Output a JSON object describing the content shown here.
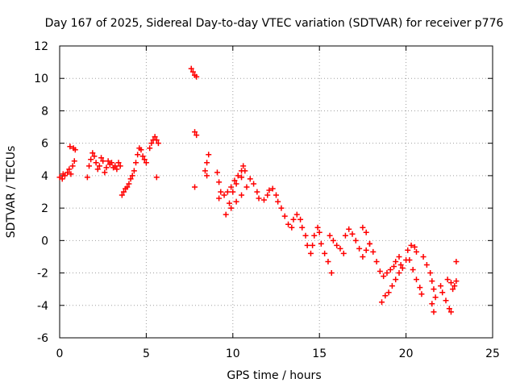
{
  "chart_data": {
    "type": "scatter",
    "title": "Day 167 of 2025, Sidereal Day-to-day VTEC variation (SDTVAR) for receiver p776",
    "xlabel": "GPS time / hours",
    "ylabel": "SDTVAR / TECUs",
    "xlim": [
      0,
      25
    ],
    "ylim": [
      -6,
      12
    ],
    "xticks": [
      "0",
      "5",
      "10",
      "15",
      "20",
      "25"
    ],
    "yticks": [
      "-6",
      "-4",
      "-2",
      "0",
      "2",
      "4",
      "6",
      "8",
      "10",
      "12"
    ],
    "grid": true,
    "marker": "+",
    "color": "#ff0000",
    "series": [
      {
        "name": "SDTVAR",
        "points": [
          [
            0.0,
            3.9
          ],
          [
            0.15,
            3.8
          ],
          [
            0.3,
            4.0
          ],
          [
            0.45,
            4.2
          ],
          [
            0.55,
            4.4
          ],
          [
            0.65,
            4.1
          ],
          [
            0.75,
            4.6
          ],
          [
            0.85,
            4.9
          ],
          [
            0.6,
            5.8
          ],
          [
            0.8,
            5.7
          ],
          [
            0.9,
            5.6
          ],
          [
            0.2,
            4.1
          ],
          [
            1.6,
            3.9
          ],
          [
            1.7,
            4.6
          ],
          [
            1.8,
            5.0
          ],
          [
            1.9,
            5.4
          ],
          [
            2.0,
            5.2
          ],
          [
            2.1,
            4.8
          ],
          [
            2.2,
            4.4
          ],
          [
            2.3,
            4.6
          ],
          [
            2.4,
            5.1
          ],
          [
            2.5,
            4.9
          ],
          [
            2.6,
            4.2
          ],
          [
            2.7,
            4.5
          ],
          [
            2.8,
            4.9
          ],
          [
            2.9,
            4.7
          ],
          [
            3.0,
            4.8
          ],
          [
            3.1,
            4.5
          ],
          [
            3.2,
            4.6
          ],
          [
            3.3,
            4.4
          ],
          [
            3.4,
            4.8
          ],
          [
            3.5,
            4.6
          ],
          [
            3.6,
            2.8
          ],
          [
            3.7,
            3.0
          ],
          [
            3.8,
            3.2
          ],
          [
            3.9,
            3.3
          ],
          [
            4.0,
            3.5
          ],
          [
            4.1,
            3.8
          ],
          [
            4.2,
            4.0
          ],
          [
            4.3,
            4.3
          ],
          [
            4.4,
            4.8
          ],
          [
            4.5,
            5.3
          ],
          [
            4.6,
            5.7
          ],
          [
            4.7,
            5.6
          ],
          [
            4.8,
            5.2
          ],
          [
            4.9,
            5.0
          ],
          [
            5.0,
            4.8
          ],
          [
            5.2,
            5.7
          ],
          [
            5.3,
            6.0
          ],
          [
            5.4,
            6.2
          ],
          [
            5.5,
            6.4
          ],
          [
            5.6,
            6.2
          ],
          [
            5.7,
            6.0
          ],
          [
            5.6,
            3.9
          ],
          [
            7.6,
            10.6
          ],
          [
            7.7,
            10.4
          ],
          [
            7.8,
            10.2
          ],
          [
            7.9,
            10.1
          ],
          [
            7.8,
            6.7
          ],
          [
            7.9,
            6.5
          ],
          [
            7.8,
            3.3
          ],
          [
            8.4,
            4.3
          ],
          [
            8.5,
            4.8
          ],
          [
            8.6,
            5.3
          ],
          [
            8.5,
            4.0
          ],
          [
            9.1,
            4.2
          ],
          [
            9.2,
            3.6
          ],
          [
            9.3,
            3.0
          ],
          [
            9.2,
            2.6
          ],
          [
            9.5,
            2.8
          ],
          [
            9.7,
            3.0
          ],
          [
            9.9,
            3.3
          ],
          [
            10.1,
            3.7
          ],
          [
            10.3,
            4.0
          ],
          [
            10.5,
            4.3
          ],
          [
            10.6,
            4.6
          ],
          [
            10.7,
            4.3
          ],
          [
            10.5,
            3.9
          ],
          [
            10.2,
            3.5
          ],
          [
            10.0,
            3.0
          ],
          [
            9.8,
            2.3
          ],
          [
            9.6,
            1.6
          ],
          [
            9.9,
            2.0
          ],
          [
            10.2,
            2.4
          ],
          [
            10.5,
            2.8
          ],
          [
            10.8,
            3.3
          ],
          [
            11.0,
            3.8
          ],
          [
            11.2,
            3.5
          ],
          [
            11.4,
            3.0
          ],
          [
            11.5,
            2.6
          ],
          [
            11.8,
            2.5
          ],
          [
            12.0,
            2.8
          ],
          [
            12.1,
            3.1
          ],
          [
            12.3,
            3.2
          ],
          [
            12.5,
            2.8
          ],
          [
            12.6,
            2.4
          ],
          [
            12.8,
            2.0
          ],
          [
            13.0,
            1.5
          ],
          [
            13.2,
            1.0
          ],
          [
            13.4,
            0.8
          ],
          [
            13.5,
            1.3
          ],
          [
            13.7,
            1.6
          ],
          [
            13.9,
            1.3
          ],
          [
            14.0,
            0.8
          ],
          [
            14.2,
            0.3
          ],
          [
            14.3,
            -0.3
          ],
          [
            14.5,
            -0.8
          ],
          [
            14.6,
            -0.3
          ],
          [
            14.7,
            0.3
          ],
          [
            14.9,
            0.8
          ],
          [
            15.0,
            0.5
          ],
          [
            15.1,
            -0.2
          ],
          [
            15.3,
            -0.8
          ],
          [
            15.5,
            -1.3
          ],
          [
            15.7,
            -2.0
          ],
          [
            15.6,
            0.3
          ],
          [
            15.8,
            0.0
          ],
          [
            16.0,
            -0.3
          ],
          [
            16.2,
            -0.5
          ],
          [
            16.4,
            -0.8
          ],
          [
            16.5,
            0.3
          ],
          [
            16.7,
            0.7
          ],
          [
            16.9,
            0.4
          ],
          [
            17.1,
            0.0
          ],
          [
            17.3,
            -0.5
          ],
          [
            17.5,
            -1.0
          ],
          [
            17.7,
            -0.6
          ],
          [
            17.9,
            -0.2
          ],
          [
            17.5,
            0.8
          ],
          [
            17.7,
            0.5
          ],
          [
            17.9,
            -0.2
          ],
          [
            18.1,
            -0.7
          ],
          [
            18.3,
            -1.3
          ],
          [
            18.5,
            -1.9
          ],
          [
            18.7,
            -2.2
          ],
          [
            18.9,
            -2.0
          ],
          [
            19.1,
            -1.8
          ],
          [
            19.3,
            -1.6
          ],
          [
            19.4,
            -1.3
          ],
          [
            19.6,
            -1.0
          ],
          [
            19.7,
            -1.5
          ],
          [
            18.6,
            -3.8
          ],
          [
            18.8,
            -3.4
          ],
          [
            19.0,
            -3.2
          ],
          [
            19.2,
            -2.8
          ],
          [
            19.4,
            -2.4
          ],
          [
            19.6,
            -2.0
          ],
          [
            19.8,
            -1.7
          ],
          [
            20.0,
            -1.2
          ],
          [
            20.1,
            -0.6
          ],
          [
            20.3,
            -0.3
          ],
          [
            20.5,
            -0.4
          ],
          [
            20.6,
            -0.7
          ],
          [
            20.2,
            -1.2
          ],
          [
            20.4,
            -1.8
          ],
          [
            20.6,
            -2.4
          ],
          [
            20.8,
            -2.9
          ],
          [
            20.9,
            -3.3
          ],
          [
            21.0,
            -1.0
          ],
          [
            21.2,
            -1.5
          ],
          [
            21.4,
            -2.0
          ],
          [
            21.5,
            -2.5
          ],
          [
            21.6,
            -3.0
          ],
          [
            21.7,
            -3.5
          ],
          [
            21.6,
            -4.4
          ],
          [
            21.5,
            -3.9
          ],
          [
            22.0,
            -2.8
          ],
          [
            22.1,
            -3.2
          ],
          [
            22.3,
            -3.7
          ],
          [
            22.5,
            -4.2
          ],
          [
            22.6,
            -4.4
          ],
          [
            22.4,
            -2.4
          ],
          [
            22.6,
            -2.6
          ],
          [
            22.7,
            -3.0
          ],
          [
            22.8,
            -2.8
          ],
          [
            22.9,
            -2.5
          ],
          [
            22.9,
            -1.3
          ]
        ]
      }
    ]
  }
}
